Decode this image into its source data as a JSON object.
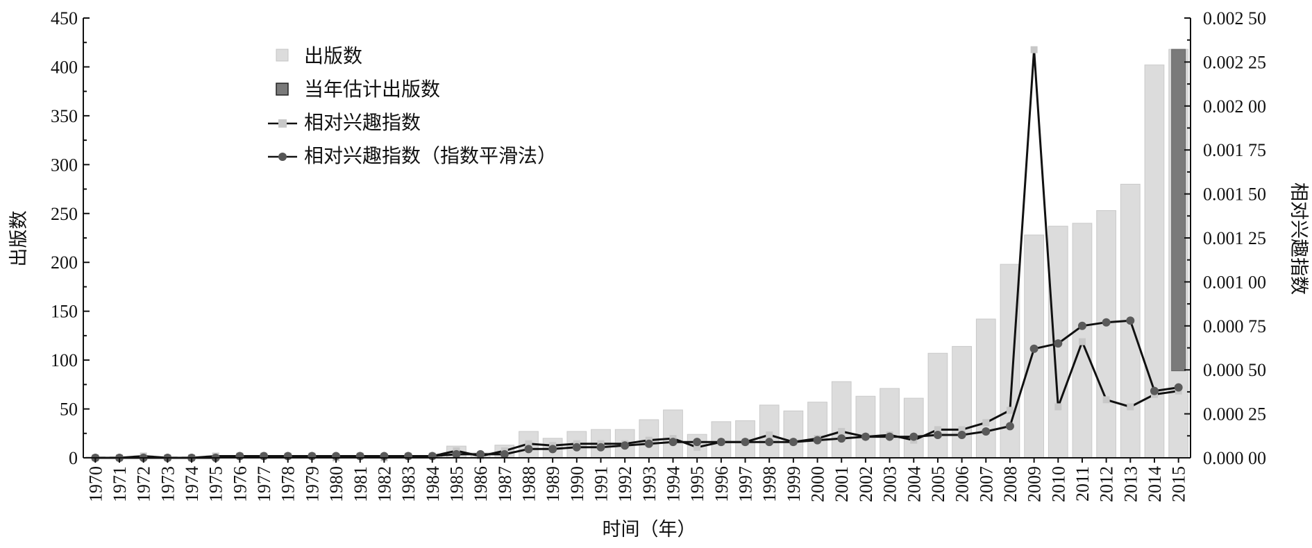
{
  "chart_data": {
    "type": "bar",
    "xlabel": "时间（年）",
    "ylabel_left": "出版数",
    "ylabel_right": "相对兴趣指数",
    "ylim_left": [
      0,
      450
    ],
    "yticks_left": [
      "0",
      "50",
      "100",
      "150",
      "200",
      "250",
      "300",
      "350",
      "400",
      "450"
    ],
    "ylim_right": [
      0,
      0.0025
    ],
    "yticks_right": [
      "0.000 00",
      "0.000 25",
      "0.000 50",
      "0.000 75",
      "0.001 00",
      "0.001 25",
      "0.001 50",
      "0.001 75",
      "0.002 00",
      "0.002 25",
      "0.002 50"
    ],
    "legend_position": "top-left",
    "categories": [
      "1970",
      "1971",
      "1972",
      "1973",
      "1974",
      "1975",
      "1976",
      "1977",
      "1978",
      "1979",
      "1980",
      "1981",
      "1982",
      "1983",
      "1984",
      "1985",
      "1986",
      "1987",
      "1988",
      "1989",
      "1990",
      "1991",
      "1992",
      "1993",
      "1994",
      "1995",
      "1996",
      "1997",
      "1998",
      "1999",
      "2000",
      "2001",
      "2002",
      "2003",
      "2004",
      "2005",
      "2006",
      "2007",
      "2008",
      "2009",
      "2010",
      "2011",
      "2012",
      "2013",
      "2014",
      "2015"
    ],
    "series": [
      {
        "name": "出版数",
        "type": "bar",
        "axis": "left",
        "color": "#dcdcdc",
        "values": [
          1,
          1,
          2,
          1,
          1,
          2,
          2,
          2,
          2,
          2,
          1,
          2,
          1,
          2,
          2,
          12,
          5,
          13,
          27,
          20,
          27,
          29,
          29,
          39,
          49,
          24,
          37,
          38,
          54,
          48,
          57,
          78,
          63,
          71,
          61,
          107,
          114,
          142,
          198,
          228,
          237,
          240,
          253,
          280,
          402,
          418
        ]
      },
      {
        "name": "当年估计出版数",
        "type": "bar",
        "axis": "left",
        "color": "#7a7a7a",
        "values": [
          null,
          null,
          null,
          null,
          null,
          null,
          null,
          null,
          null,
          null,
          null,
          null,
          null,
          null,
          null,
          null,
          null,
          null,
          null,
          null,
          null,
          null,
          null,
          null,
          null,
          null,
          null,
          null,
          null,
          null,
          null,
          null,
          null,
          null,
          null,
          null,
          null,
          null,
          null,
          null,
          null,
          null,
          null,
          null,
          null,
          418
        ],
        "base": [
          null,
          null,
          null,
          null,
          null,
          null,
          null,
          null,
          null,
          null,
          null,
          null,
          null,
          null,
          null,
          null,
          null,
          null,
          null,
          null,
          null,
          null,
          null,
          null,
          null,
          null,
          null,
          null,
          null,
          null,
          null,
          null,
          null,
          null,
          null,
          null,
          null,
          null,
          null,
          null,
          null,
          null,
          null,
          null,
          null,
          89
        ]
      },
      {
        "name": "相对兴趣指数",
        "type": "line",
        "axis": "right",
        "color": "#111111",
        "values": [
          0.0,
          0.0,
          1e-05,
          0.0,
          0.0,
          1e-05,
          1e-05,
          1e-05,
          1e-05,
          1e-05,
          0.0,
          1e-05,
          0.0,
          1e-05,
          1e-05,
          4e-05,
          1e-05,
          4e-05,
          8e-05,
          7e-05,
          8e-05,
          8e-05,
          8e-05,
          0.0001,
          0.00011,
          6e-05,
          9e-05,
          9e-05,
          0.00013,
          9e-05,
          0.00011,
          0.00015,
          0.00012,
          0.00013,
          0.0001,
          0.00016,
          0.00016,
          0.0002,
          0.00027,
          0.00232,
          0.00029,
          0.00066,
          0.00033,
          0.00029,
          0.00036,
          0.00038
        ]
      },
      {
        "name": "相对兴趣指数（指数平滑法）",
        "type": "line",
        "axis": "right",
        "color": "#111111",
        "values": [
          0.0,
          0.0,
          0.0,
          0.0,
          0.0,
          0.0,
          1e-05,
          1e-05,
          1e-05,
          1e-05,
          1e-05,
          1e-05,
          1e-05,
          1e-05,
          1e-05,
          2e-05,
          2e-05,
          2e-05,
          5e-05,
          5e-05,
          6e-05,
          6e-05,
          7e-05,
          8e-05,
          9e-05,
          9e-05,
          9e-05,
          9e-05,
          9e-05,
          9e-05,
          0.0001,
          0.00011,
          0.00012,
          0.00012,
          0.00012,
          0.00013,
          0.00013,
          0.00015,
          0.00018,
          0.00062,
          0.00065,
          0.00075,
          0.00077,
          0.00078,
          0.00038,
          0.0004
        ]
      }
    ]
  }
}
